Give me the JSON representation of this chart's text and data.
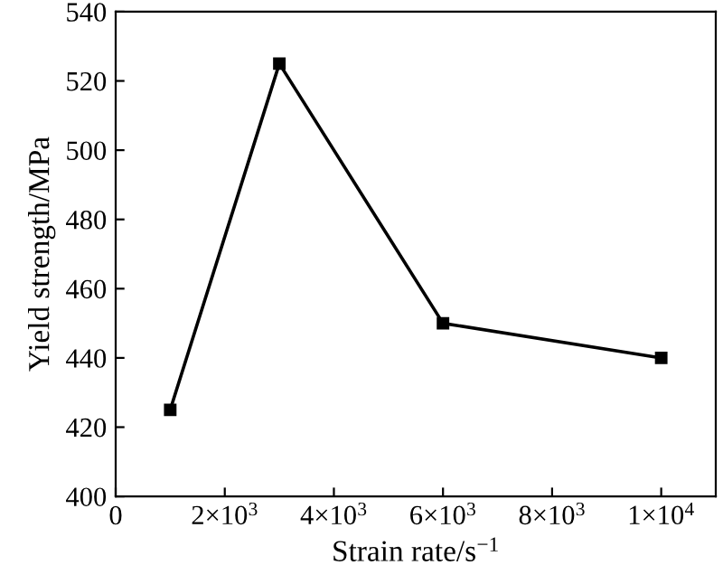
{
  "chart_data": {
    "type": "line",
    "xlabel": "Strain rate/s$^{−1}$",
    "ylabel": "Yield strength/MPa",
    "x": [
      1000,
      3000,
      6000,
      10000
    ],
    "series": [
      {
        "color": "#000000",
        "values": [
          425,
          525,
          450,
          440
        ]
      }
    ],
    "xlim": [
      0,
      11000
    ],
    "xticks": [
      0,
      {
        "value": 2000,
        "label": "2×10$^{3}$"
      },
      {
        "value": 4000,
        "label": "4×10$^{3}$"
      },
      {
        "value": 6000,
        "label": "6×10$^{3}$"
      },
      {
        "value": 8000,
        "label": "8×10$^{3}$"
      },
      {
        "value": 10000,
        "label": "1×10$^{4}$"
      }
    ],
    "ylim": [
      400,
      540
    ],
    "yticks": [
      400,
      420,
      440,
      460,
      480,
      500,
      520,
      540
    ],
    "grid": false,
    "legend": false,
    "marker": "square",
    "line_style": "solid"
  }
}
